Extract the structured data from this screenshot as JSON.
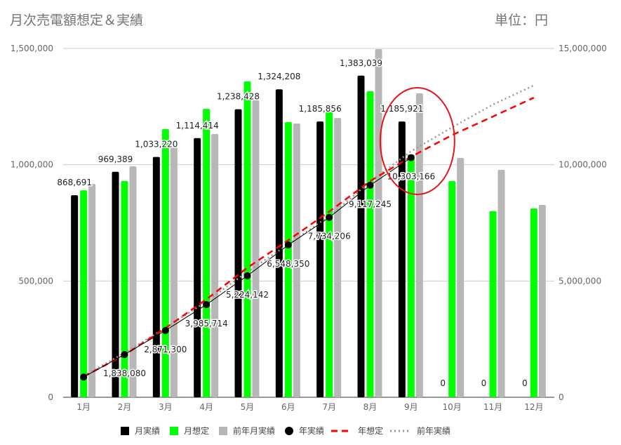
{
  "header": {
    "title": "月次売電額想定＆実績",
    "unit": "単位：円"
  },
  "chart_data": {
    "type": "bar+line",
    "title": "月次売電額想定＆実績",
    "categories": [
      "1月",
      "2月",
      "3月",
      "4月",
      "5月",
      "6月",
      "7月",
      "8月",
      "9月",
      "10月",
      "11月",
      "12月"
    ],
    "left_axis": {
      "range": [
        0,
        1500000
      ],
      "ticks": [
        "0",
        "500,000",
        "1,000,000",
        "1,500,000"
      ]
    },
    "right_axis": {
      "range": [
        0,
        15000000
      ],
      "ticks": [
        "0",
        "5,000,000",
        "10,000,000",
        "15,000,000"
      ]
    },
    "grid": true,
    "legend_position": "bottom",
    "bar_series": [
      {
        "name": "月実績",
        "color": "#000000",
        "values": [
          868691,
          969389,
          1033220,
          1114414,
          1238428,
          1324208,
          1185856,
          1383039,
          1185921,
          0,
          0,
          0
        ],
        "labels": [
          "868,691",
          "969,389",
          "1,033,220",
          "1,114,414",
          "1,238,428",
          "1,324,208",
          "1,185,856",
          "1,383,039",
          "1,185,921",
          "0",
          "0",
          "0"
        ]
      },
      {
        "name": "月想定",
        "color": "#00ff00",
        "values": [
          890000,
          930000,
          1153000,
          1240000,
          1358000,
          1183000,
          1228000,
          1316000,
          1044000,
          930000,
          800000,
          812000
        ]
      },
      {
        "name": "前年月実績",
        "color": "#b7b7b7",
        "values": [
          917000,
          993000,
          1077000,
          1132000,
          1277000,
          1177000,
          1201000,
          1497000,
          1307000,
          1029000,
          978000,
          827000
        ]
      }
    ],
    "line_series": [
      {
        "name": "年実績",
        "color": "#000000",
        "style": "solid-markers",
        "values": [
          868691,
          1838080,
          2871300,
          3985714,
          5224142,
          6548350,
          7734206,
          9117245,
          10303166
        ],
        "labels": [
          "",
          "1,838,080",
          "2,871,300",
          "3,985,714",
          "5,224,142",
          "6,548,350",
          "7,734,206",
          "9,117,245",
          "10,303,166"
        ]
      },
      {
        "name": "年想定",
        "color": "#ff0000",
        "style": "dashed",
        "values": [
          890000,
          1820000,
          2973000,
          4213000,
          5571000,
          6754000,
          7982000,
          9298000,
          10342000,
          11272000,
          12072000,
          12884000
        ]
      },
      {
        "name": "前年実績",
        "color": "#999999",
        "style": "dotted",
        "values": [
          917000,
          1910000,
          2987000,
          4119000,
          5396000,
          6573000,
          7774000,
          9271000,
          10578000,
          11607000,
          12585000,
          13412000
        ]
      }
    ],
    "annotation": {
      "type": "ellipse",
      "color": "#e8141c",
      "target": "9月"
    }
  }
}
